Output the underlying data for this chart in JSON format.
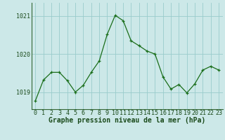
{
  "x": [
    0,
    1,
    2,
    3,
    4,
    5,
    6,
    7,
    8,
    9,
    10,
    11,
    12,
    13,
    14,
    15,
    16,
    17,
    18,
    19,
    20,
    21,
    22,
    23
  ],
  "y": [
    1018.78,
    1019.32,
    1019.52,
    1019.52,
    1019.3,
    1019.0,
    1019.18,
    1019.52,
    1019.82,
    1020.52,
    1021.02,
    1020.88,
    1020.35,
    1020.22,
    1020.08,
    1020.0,
    1019.4,
    1019.08,
    1019.2,
    1018.98,
    1019.22,
    1019.58,
    1019.68,
    1019.58
  ],
  "line_color": "#1a6e1a",
  "marker_color": "#1a6e1a",
  "bg_color": "#cce8e8",
  "grid_color": "#99cccc",
  "ylabel_ticks": [
    1019,
    1020,
    1021
  ],
  "xlabel_label": "Graphe pression niveau de la mer (hPa)",
  "ylim": [
    1018.55,
    1021.35
  ],
  "xlim": [
    -0.5,
    23.5
  ],
  "text_color": "#1a4a1a",
  "label_fontsize": 7.0,
  "tick_fontsize": 6.0,
  "spine_color": "#336633"
}
